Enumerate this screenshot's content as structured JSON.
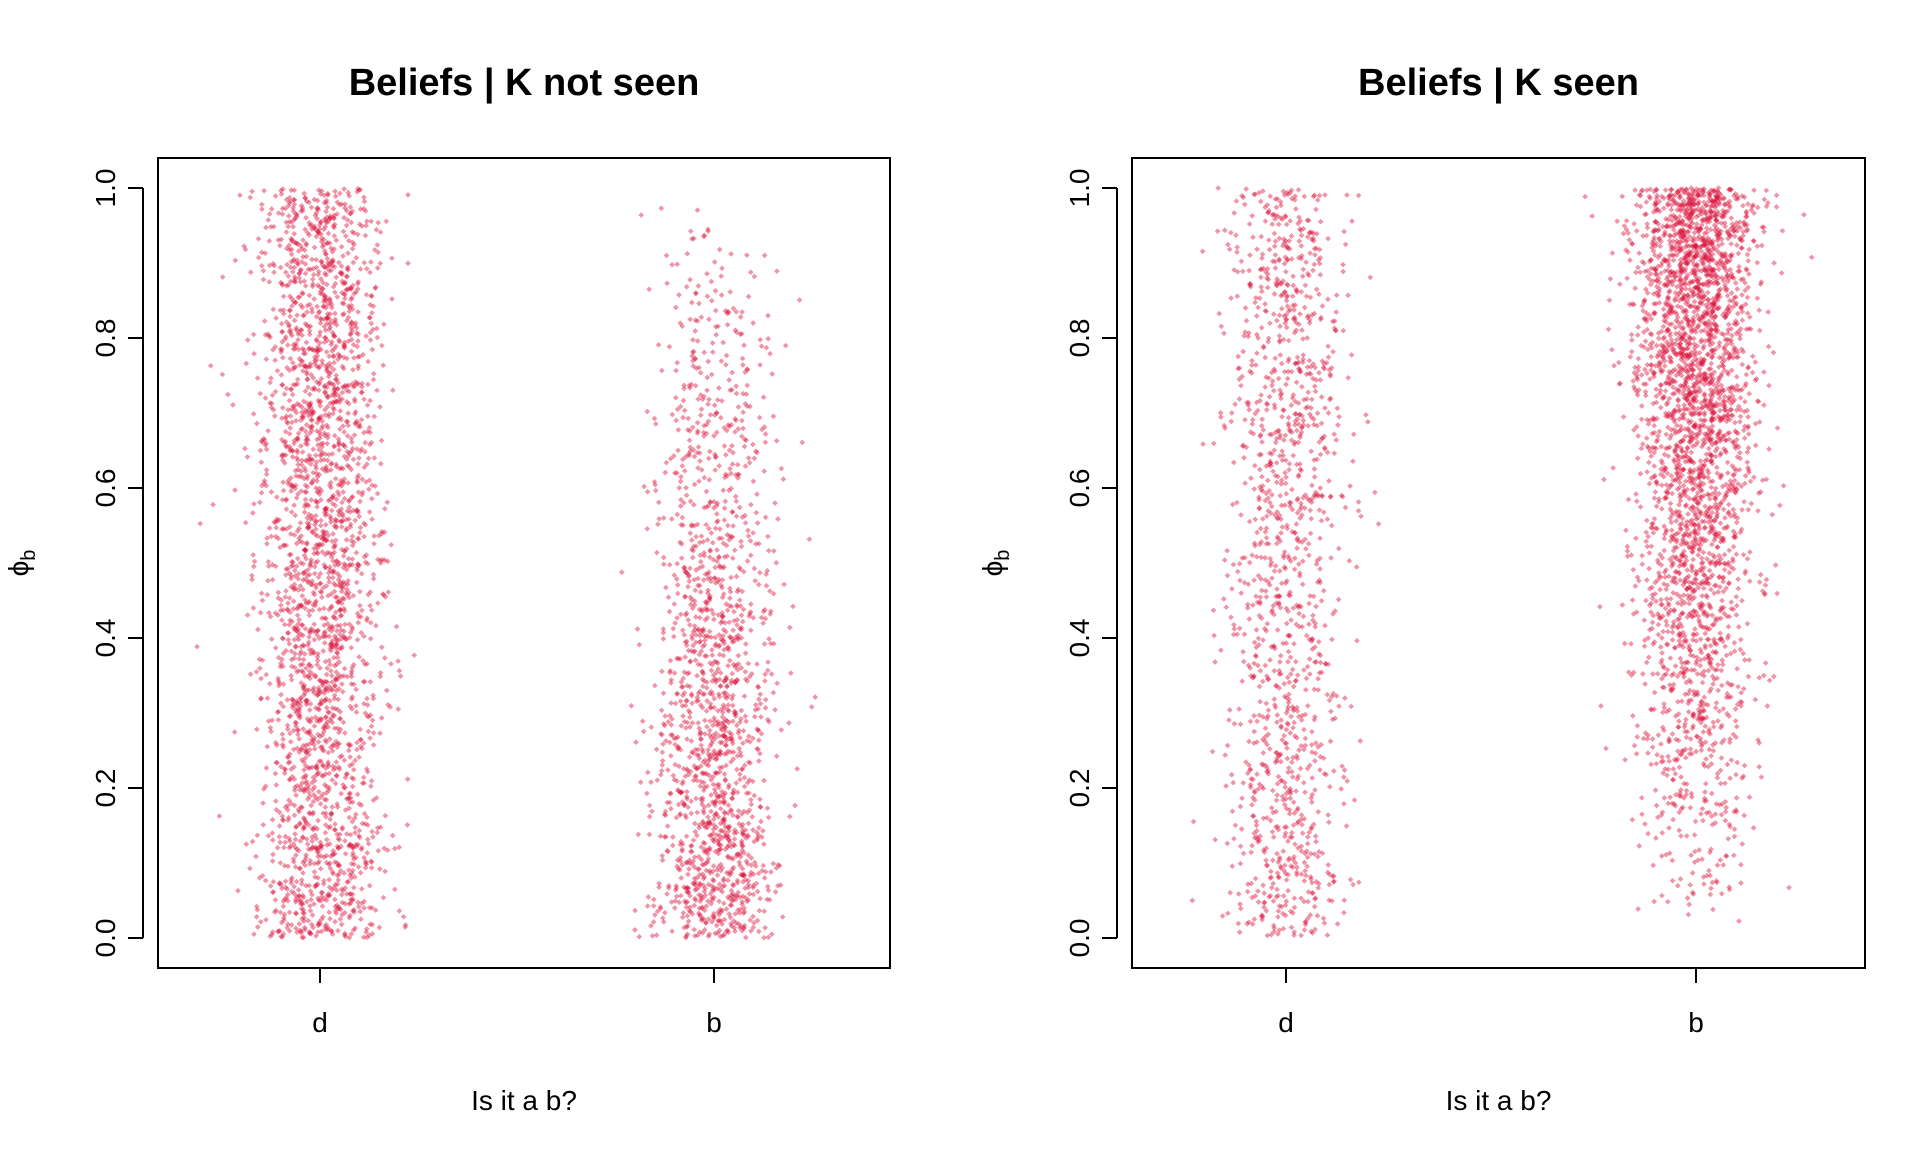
{
  "chart_data": [
    {
      "type": "scatter",
      "title": "Beliefs | K not seen",
      "xlabel": "Is it a b?",
      "ylabel": "ϕ",
      "ylabel_subscript": "b",
      "categories": [
        "d",
        "b"
      ],
      "ylim": [
        0,
        1
      ],
      "yticks": [
        "0.0",
        "0.2",
        "0.4",
        "0.6",
        "0.8",
        "1.0"
      ],
      "point_color": "#dc143c",
      "jitter": true,
      "series": [
        {
          "category": "d",
          "n": 2600,
          "y_distribution": "uniform",
          "y_range": [
            0,
            1
          ]
        },
        {
          "category": "b",
          "n": 1600,
          "y_distribution": "decreasing",
          "y_range": [
            0,
            1
          ]
        }
      ]
    },
    {
      "type": "scatter",
      "title": "Beliefs | K seen",
      "xlabel": "Is it a b?",
      "ylabel": "ϕ",
      "ylabel_subscript": "b",
      "categories": [
        "d",
        "b"
      ],
      "ylim": [
        0,
        1
      ],
      "yticks": [
        "0.0",
        "0.2",
        "0.4",
        "0.6",
        "0.8",
        "1.0"
      ],
      "point_color": "#dc143c",
      "jitter": true,
      "series": [
        {
          "category": "d",
          "n": 1300,
          "y_distribution": "uniform",
          "y_range": [
            0,
            1
          ]
        },
        {
          "category": "b",
          "n": 3000,
          "y_distribution": "increasing",
          "y_range": [
            0,
            1
          ]
        }
      ]
    }
  ]
}
